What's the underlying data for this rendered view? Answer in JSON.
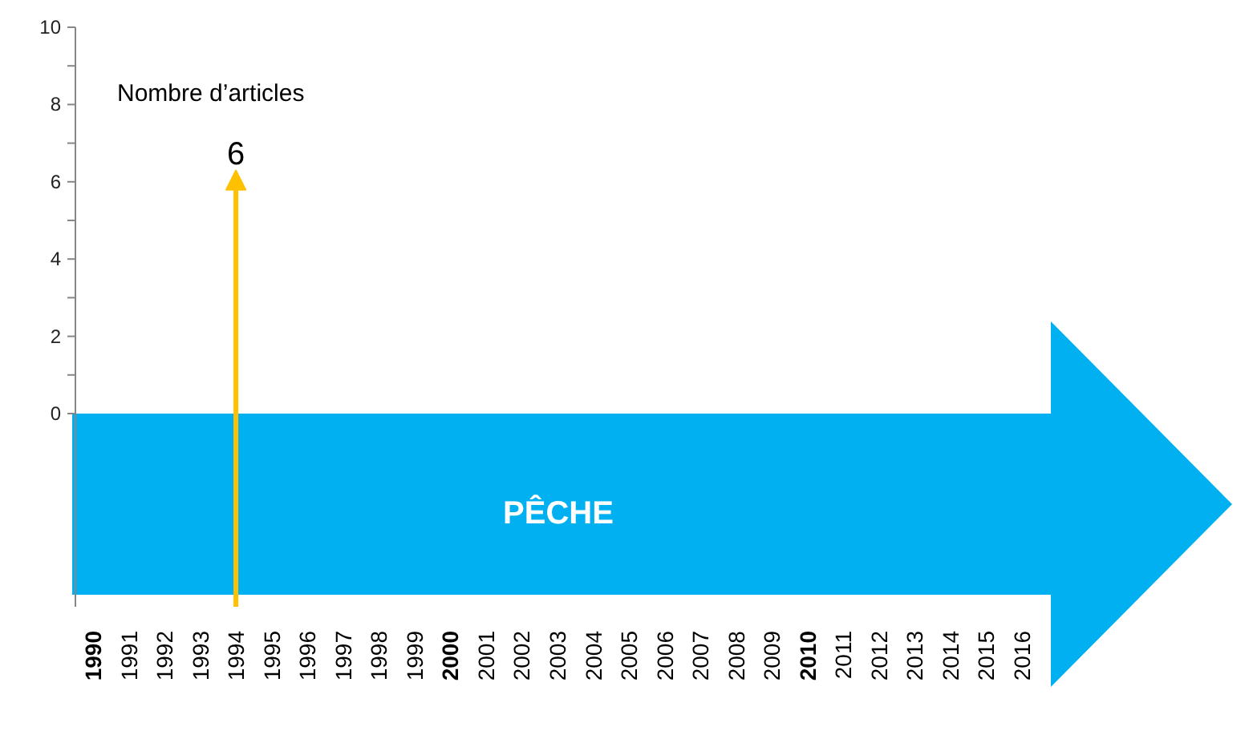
{
  "chart_data": {
    "type": "lollipop",
    "ylabel": "Nombre d’articles",
    "categories": [
      "1990",
      "1991",
      "1992",
      "1993",
      "1994",
      "1995",
      "1996",
      "1997",
      "1998",
      "1999",
      "2000",
      "2001",
      "2002",
      "2003",
      "2004",
      "2005",
      "2006",
      "2007",
      "2008",
      "2009",
      "2010",
      "2011",
      "2012",
      "2013",
      "2014",
      "2015",
      "2016"
    ],
    "values": [
      null,
      null,
      null,
      null,
      6,
      null,
      null,
      null,
      null,
      null,
      null,
      null,
      null,
      null,
      null,
      null,
      null,
      null,
      null,
      null,
      null,
      null,
      null,
      null,
      null,
      null,
      null
    ],
    "color": "#ffc000",
    "ylim": [
      -5,
      10
    ],
    "yticks": [
      0,
      {
        "value": 1,
        "label": null
      },
      2,
      {
        "value": 3,
        "label": null
      },
      4,
      {
        "value": 5,
        "label": null
      },
      6,
      {
        "value": 7,
        "label": null
      },
      8,
      {
        "value": 9,
        "label": null
      },
      10
    ],
    "data_labels": true,
    "marker": "triangle",
    "annotations": [
      "PÊCHE"
    ]
  }
}
